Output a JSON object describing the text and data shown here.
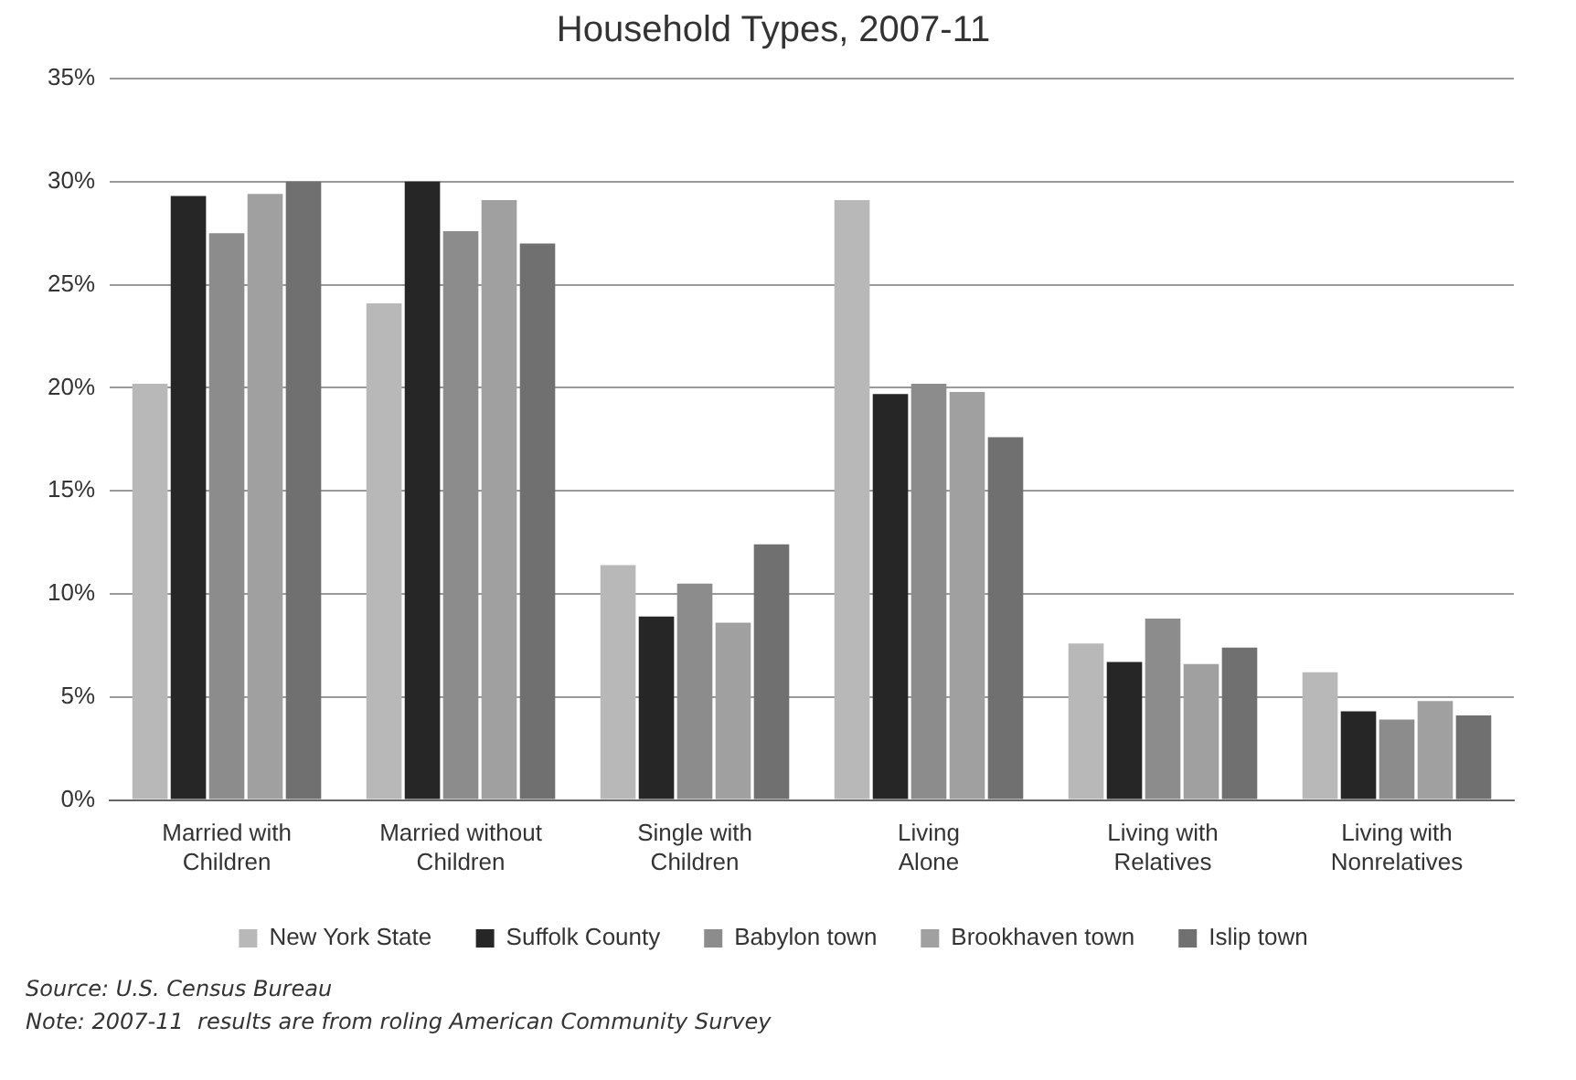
{
  "chart_data": {
    "type": "bar",
    "title": "Household Types, 2007-11",
    "categories": [
      "Married with Children",
      "Married without Children",
      "Single with Children",
      "Living Alone",
      "Living with Relatives",
      "Living with Nonrelatives"
    ],
    "series": [
      {
        "name": "New York State",
        "color": "#b8b8b8",
        "values": [
          20.2,
          24.1,
          11.4,
          29.1,
          7.6,
          6.2
        ]
      },
      {
        "name": "Suffolk County",
        "color": "#262626",
        "values": [
          29.3,
          30.0,
          8.9,
          19.7,
          6.7,
          4.3
        ]
      },
      {
        "name": "Babylon town",
        "color": "#8c8c8c",
        "values": [
          27.5,
          27.6,
          10.5,
          20.2,
          8.8,
          3.9
        ]
      },
      {
        "name": "Brookhaven town",
        "color": "#a0a0a0",
        "values": [
          29.4,
          29.1,
          8.6,
          19.8,
          6.6,
          4.8
        ]
      },
      {
        "name": "Islip town",
        "color": "#707070",
        "values": [
          30.0,
          27.0,
          12.4,
          17.6,
          7.4,
          4.1
        ]
      }
    ],
    "ylim": [
      0,
      35
    ],
    "yticks": [
      {
        "value": 0,
        "label": "0%"
      },
      {
        "value": 5,
        "label": "5%"
      },
      {
        "value": 10,
        "label": "10%"
      },
      {
        "value": 15,
        "label": "15%"
      },
      {
        "value": 20,
        "label": "20%"
      },
      {
        "value": 25,
        "label": "25%"
      },
      {
        "value": 30,
        "label": "30%"
      },
      {
        "value": 35,
        "label": "35%"
      }
    ],
    "grid": "y",
    "legend": "bottom",
    "annotations": [
      "Source: U.S. Census Bureau",
      "Note: 2007-11  results are from roling American Community Survey"
    ]
  }
}
